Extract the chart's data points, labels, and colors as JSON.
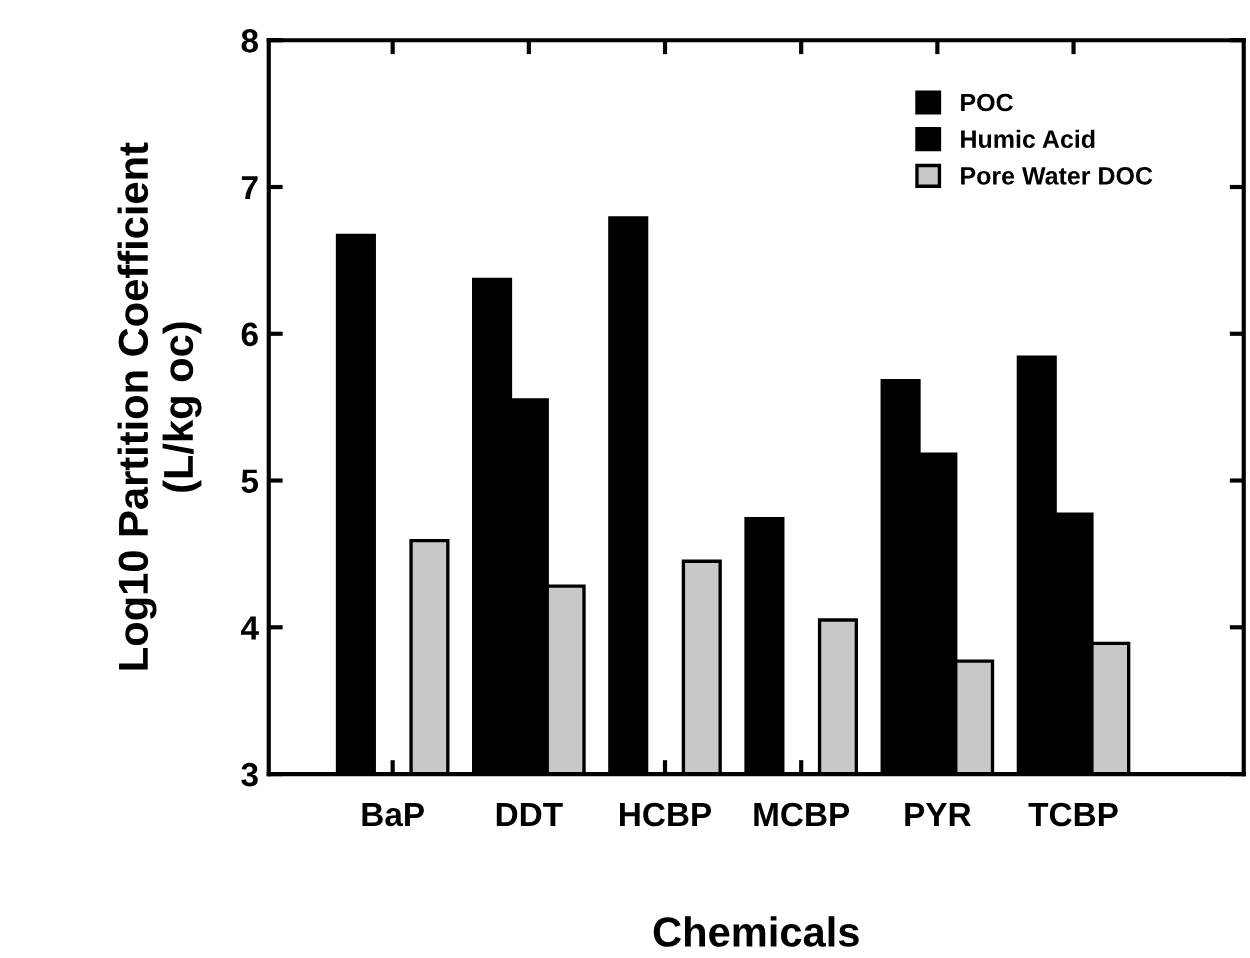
{
  "chart_data": {
    "type": "bar",
    "xlabel": "Chemicals",
    "ylabel": "Log10 Partition Coefficient\n(L/kg oc)",
    "categories": [
      "BaP",
      "DDT",
      "HCBP",
      "MCBP",
      "PYR",
      "TCBP"
    ],
    "series": [
      {
        "name": "POC",
        "color": "#000000",
        "values": [
          6.67,
          6.37,
          6.79,
          4.74,
          5.68,
          5.84
        ]
      },
      {
        "name": "Humic Acid",
        "color": "#000000",
        "values": [
          null,
          5.55,
          null,
          null,
          5.18,
          4.77
        ]
      },
      {
        "name": "Pore Water DOC",
        "color": "#c8c8c8",
        "values": [
          4.59,
          4.28,
          4.45,
          4.05,
          3.77,
          3.89
        ]
      }
    ],
    "ylim": [
      3,
      8
    ],
    "yticks": [
      3,
      4,
      5,
      6,
      7,
      8
    ],
    "grid": false,
    "legend": "top right"
  }
}
